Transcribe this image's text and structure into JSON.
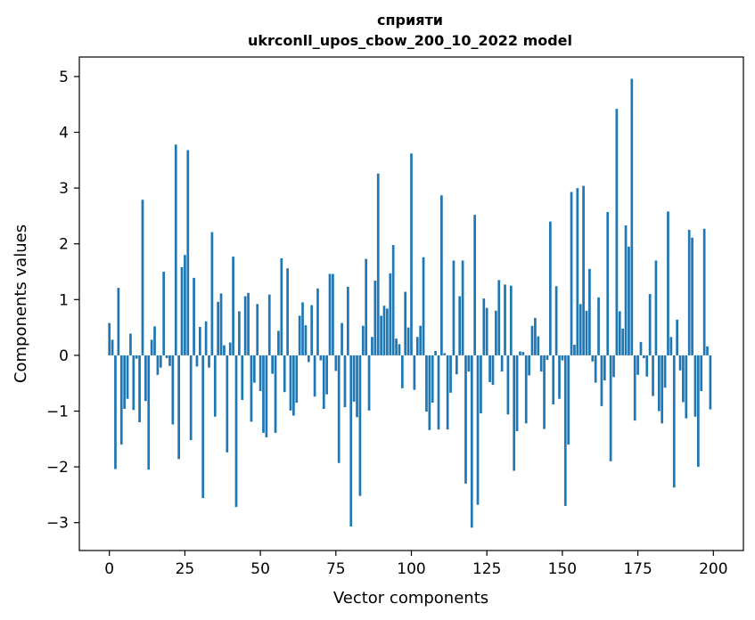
{
  "chart_data": {
    "type": "bar",
    "title": "сприяти",
    "subtitle": "ukrconll_upos_cbow_200_10_2022 model",
    "xlabel": "Vector components",
    "ylabel": "Components values",
    "xlim": [
      -9.95,
      209.95
    ],
    "ylim": [
      -3.5,
      5.35
    ],
    "xticks": [
      0,
      25,
      50,
      75,
      100,
      125,
      150,
      175,
      200
    ],
    "xtick_labels": [
      "0",
      "25",
      "50",
      "75",
      "100",
      "125",
      "150",
      "175",
      "200"
    ],
    "yticks": [
      -3,
      -2,
      -1,
      0,
      1,
      2,
      3,
      4,
      5
    ],
    "ytick_labels": [
      "−3",
      "−2",
      "−1",
      "0",
      "1",
      "2",
      "3",
      "4",
      "5"
    ],
    "bar_color": "#1f77b4",
    "grid": false,
    "x": [
      0,
      1,
      2,
      3,
      4,
      5,
      6,
      7,
      8,
      9,
      10,
      11,
      12,
      13,
      14,
      15,
      16,
      17,
      18,
      19,
      20,
      21,
      22,
      23,
      24,
      25,
      26,
      27,
      28,
      29,
      30,
      31,
      32,
      33,
      34,
      35,
      36,
      37,
      38,
      39,
      40,
      41,
      42,
      43,
      44,
      45,
      46,
      47,
      48,
      49,
      50,
      51,
      52,
      53,
      54,
      55,
      56,
      57,
      58,
      59,
      60,
      61,
      62,
      63,
      64,
      65,
      66,
      67,
      68,
      69,
      70,
      71,
      72,
      73,
      74,
      75,
      76,
      77,
      78,
      79,
      80,
      81,
      82,
      83,
      84,
      85,
      86,
      87,
      88,
      89,
      90,
      91,
      92,
      93,
      94,
      95,
      96,
      97,
      98,
      99,
      100,
      101,
      102,
      103,
      104,
      105,
      106,
      107,
      108,
      109,
      110,
      111,
      112,
      113,
      114,
      115,
      116,
      117,
      118,
      119,
      120,
      121,
      122,
      123,
      124,
      125,
      126,
      127,
      128,
      129,
      130,
      131,
      132,
      133,
      134,
      135,
      136,
      137,
      138,
      139,
      140,
      141,
      142,
      143,
      144,
      145,
      146,
      147,
      148,
      149,
      150,
      151,
      152,
      153,
      154,
      155,
      156,
      157,
      158,
      159,
      160,
      161,
      162,
      163,
      164,
      165,
      166,
      167,
      168,
      169,
      170,
      171,
      172,
      173,
      174,
      175,
      176,
      177,
      178,
      179,
      180,
      181,
      182,
      183,
      184,
      185,
      186,
      187,
      188,
      189,
      190,
      191,
      192,
      193,
      194,
      195,
      196,
      197,
      198,
      199
    ],
    "values": [
      0.58,
      0.28,
      -2.04,
      1.21,
      -1.6,
      -0.96,
      -0.78,
      0.39,
      -0.98,
      -0.06,
      -1.2,
      2.79,
      -0.82,
      -2.05,
      0.28,
      0.52,
      -0.35,
      -0.22,
      1.5,
      -0.05,
      -0.19,
      -1.24,
      3.78,
      -1.86,
      1.58,
      1.8,
      3.68,
      -1.52,
      1.39,
      -0.2,
      0.51,
      -2.56,
      0.61,
      -0.22,
      2.21,
      -1.1,
      0.96,
      1.11,
      0.18,
      -1.74,
      0.23,
      1.77,
      -2.72,
      0.79,
      -0.8,
      1.06,
      1.12,
      -1.19,
      -0.49,
      0.92,
      -0.64,
      -1.39,
      -1.47,
      1.09,
      -0.33,
      -1.39,
      0.44,
      1.74,
      -0.66,
      1.56,
      -0.99,
      -1.08,
      -0.85,
      0.71,
      0.95,
      0.54,
      -0.12,
      0.9,
      -0.74,
      1.2,
      -0.09,
      -0.96,
      -0.7,
      1.46,
      1.46,
      -0.28,
      -1.93,
      0.58,
      -0.93,
      1.23,
      -3.07,
      -0.83,
      -1.11,
      -2.52,
      0.53,
      1.73,
      -0.99,
      0.33,
      1.34,
      3.26,
      0.71,
      0.89,
      0.84,
      1.47,
      1.98,
      0.3,
      0.2,
      -0.59,
      1.14,
      0.5,
      3.62,
      -0.62,
      0.33,
      0.53,
      1.76,
      -1.01,
      -1.34,
      -0.85,
      0.08,
      -1.33,
      2.87,
      0.04,
      -1.33,
      -0.67,
      1.7,
      -0.34,
      1.06,
      1.7,
      -2.3,
      -0.29,
      -3.09,
      2.52,
      -2.68,
      -1.04,
      1.02,
      0.85,
      -0.48,
      -0.53,
      0.8,
      1.35,
      -0.29,
      1.27,
      -1.06,
      1.25,
      -2.07,
      -1.36,
      0.07,
      0.06,
      -1.22,
      -0.36,
      0.53,
      0.67,
      0.34,
      -0.29,
      -1.32,
      -0.08,
      2.4,
      -0.88,
      1.24,
      -0.78,
      -0.09,
      -2.7,
      -1.6,
      2.93,
      0.19,
      3.0,
      0.92,
      3.04,
      0.8,
      1.55,
      -0.11,
      -0.49,
      1.04,
      -0.91,
      -0.45,
      2.57,
      -1.9,
      -0.39,
      4.42,
      0.79,
      0.48,
      2.33,
      1.95,
      4.96,
      -1.17,
      -0.35,
      0.24,
      -0.05,
      -0.38,
      1.1,
      -0.73,
      1.7,
      -1.0,
      -1.22,
      -0.58,
      2.58,
      0.33,
      -2.37,
      0.64,
      -0.27,
      -0.84,
      -1.13,
      2.25,
      2.11,
      -1.1,
      -2.0,
      -0.64,
      2.27,
      0.16,
      -0.97
    ]
  }
}
